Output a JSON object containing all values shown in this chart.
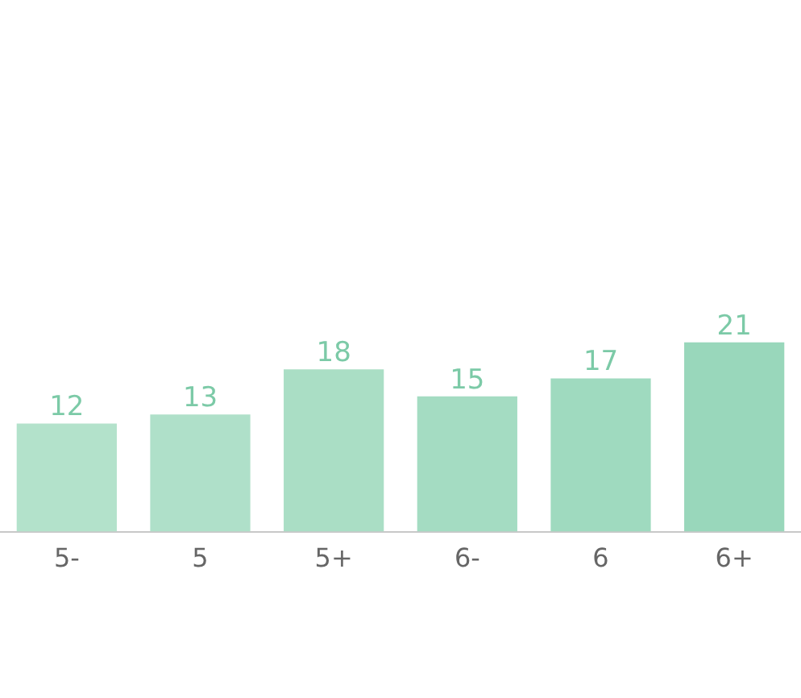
{
  "chart_data": {
    "type": "bar",
    "categories": [
      "5-",
      "5",
      "5+",
      "6-",
      "6",
      "6+"
    ],
    "values": [
      12,
      13,
      18,
      15,
      17,
      21
    ],
    "colors": [
      "#b3e2cb",
      "#afe0c9",
      "#aadec5",
      "#a4dcc2",
      "#9fdabf",
      "#99d7bb"
    ],
    "data_labels": true,
    "grid": false,
    "legend": false
  }
}
